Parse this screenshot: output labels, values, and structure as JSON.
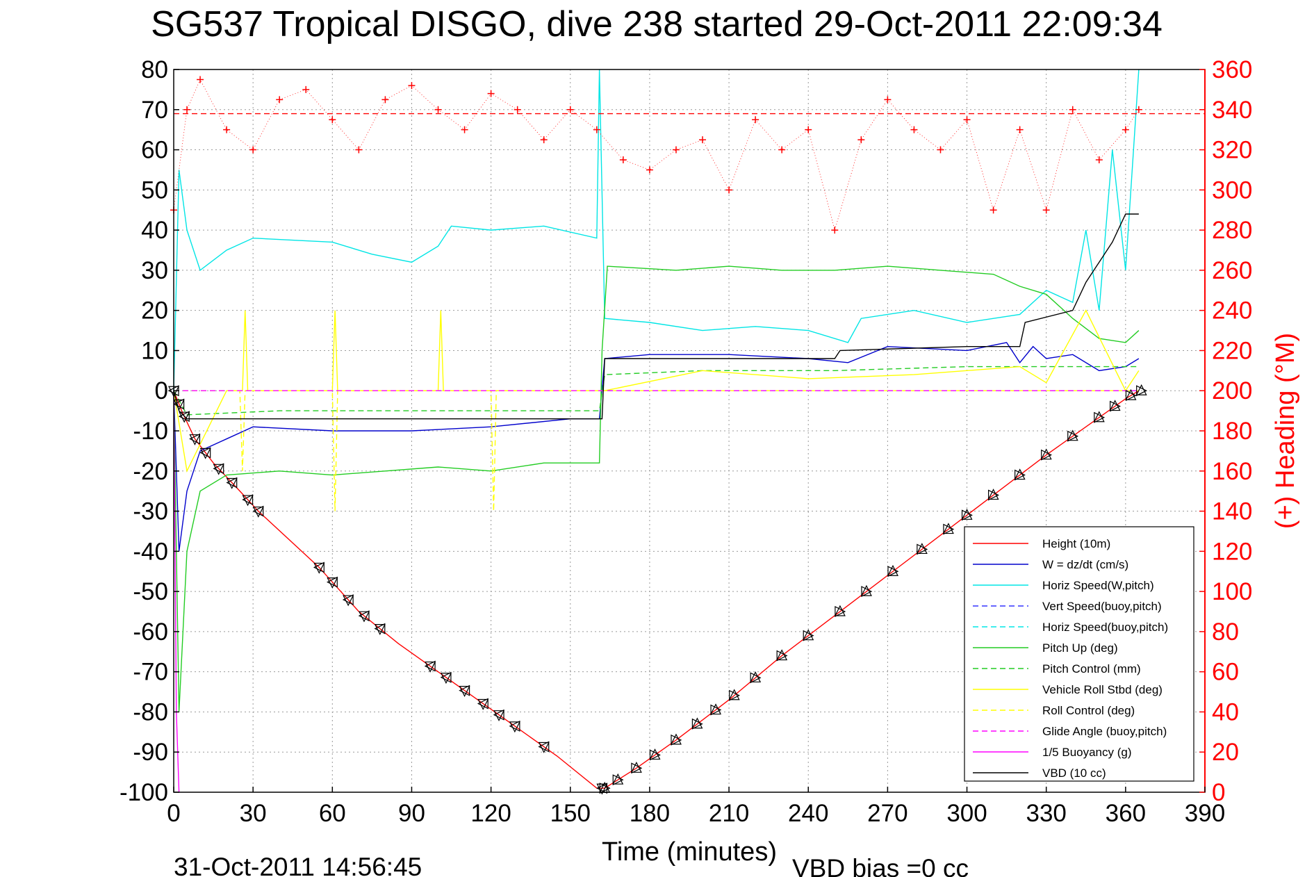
{
  "chart_data": {
    "type": "line",
    "title": "SG537 Tropical DISGO, dive 238 started 29-Oct-2011 22:09:34",
    "xlabel": "Time (minutes)",
    "ylabel_right": "(+) Heading (°M)",
    "footer_left": "31-Oct-2011 14:56:45",
    "footer_right": "VBD bias =0 cc",
    "xlim": [
      0,
      390
    ],
    "ylim": [
      -100,
      80
    ],
    "ylim_right": [
      0,
      360
    ],
    "xticks": [
      "0",
      "30",
      "60",
      "90",
      "120",
      "150",
      "180",
      "210",
      "240",
      "270",
      "300",
      "330",
      "360",
      "390"
    ],
    "yticks": [
      "80",
      "70",
      "60",
      "50",
      "40",
      "30",
      "20",
      "10",
      "0",
      "-10",
      "-20",
      "-30",
      "-40",
      "-50",
      "-60",
      "-70",
      "-80",
      "-90",
      "-100"
    ],
    "yticks_right": [
      "360",
      "340",
      "320",
      "300",
      "280",
      "260",
      "240",
      "220",
      "200",
      "180",
      "160",
      "140",
      "120",
      "100",
      "80",
      "60",
      "40",
      "20",
      "0"
    ],
    "grid": true,
    "legend_position": "lower-right",
    "series": [
      {
        "name": "Height (10m)",
        "color": "#ff0000",
        "style": "solid",
        "x": [
          0,
          3,
          8,
          15,
          25,
          32,
          55,
          70,
          85,
          100,
          115,
          130,
          145,
          160,
          163,
          175,
          190,
          210,
          230,
          250,
          270,
          290,
          310,
          330,
          345,
          360,
          365
        ],
        "y": [
          0,
          -5,
          -12,
          -18,
          -25,
          -30,
          -44,
          -55,
          -63,
          -70,
          -77,
          -84,
          -91,
          -99,
          -99,
          -94,
          -87,
          -77,
          -66,
          -56,
          -46,
          -36,
          -26,
          -16,
          -9,
          -2,
          0
        ]
      },
      {
        "name": "W = dz/dt (cm/s)",
        "color": "#0000cc",
        "style": "solid",
        "x": [
          0,
          2,
          5,
          10,
          20,
          30,
          60,
          90,
          120,
          150,
          161,
          163,
          180,
          210,
          240,
          255,
          270,
          300,
          315,
          320,
          325,
          330,
          340,
          350,
          360,
          365
        ],
        "y": [
          0,
          -40,
          -25,
          -15,
          -12,
          -9,
          -10,
          -10,
          -9,
          -7,
          -7,
          8,
          9,
          9,
          8,
          7,
          11,
          10,
          12,
          7,
          11,
          8,
          9,
          5,
          6,
          8
        ]
      },
      {
        "name": "Horiz Speed(W,pitch)",
        "color": "#00e5e5",
        "style": "solid",
        "x": [
          0,
          2,
          5,
          10,
          20,
          30,
          60,
          75,
          90,
          100,
          105,
          120,
          140,
          160,
          161,
          163,
          180,
          200,
          220,
          240,
          255,
          260,
          280,
          300,
          320,
          330,
          340,
          345,
          350,
          355,
          360,
          365
        ],
        "y": [
          0,
          55,
          40,
          30,
          35,
          38,
          37,
          34,
          32,
          36,
          41,
          40,
          41,
          38,
          80,
          18,
          17,
          15,
          16,
          15,
          12,
          18,
          20,
          17,
          19,
          25,
          22,
          40,
          20,
          60,
          30,
          80
        ]
      },
      {
        "name": "Vert Speed(buoy,pitch)",
        "color": "#3333ff",
        "style": "dashed",
        "x": [
          0,
          365
        ],
        "y": [
          0,
          0
        ]
      },
      {
        "name": "Horiz Speed(buoy,pitch)",
        "color": "#00e5e5",
        "style": "dashed",
        "x": [
          0,
          365
        ],
        "y": [
          0,
          0
        ]
      },
      {
        "name": "Pitch Up (deg)",
        "color": "#22cc22",
        "style": "solid",
        "x": [
          0,
          2,
          5,
          10,
          20,
          40,
          60,
          80,
          100,
          120,
          140,
          161,
          162,
          164,
          190,
          210,
          230,
          250,
          270,
          290,
          310,
          320,
          330,
          340,
          350,
          360,
          365
        ],
        "y": [
          0,
          -80,
          -40,
          -25,
          -21,
          -20,
          -21,
          -20,
          -19,
          -20,
          -18,
          -18,
          10,
          31,
          30,
          31,
          30,
          30,
          31,
          30,
          29,
          26,
          24,
          18,
          13,
          12,
          15
        ]
      },
      {
        "name": "Pitch Control (mm)",
        "color": "#22cc22",
        "style": "dashed",
        "x": [
          0,
          5,
          40,
          80,
          120,
          161,
          163,
          200,
          250,
          300,
          330,
          365
        ],
        "y": [
          0,
          -6,
          -5,
          -5,
          -5,
          -5,
          4,
          5,
          5,
          6,
          6,
          6
        ]
      },
      {
        "name": "Vehicle Roll Stbd (deg)",
        "color": "#ffff00",
        "style": "solid",
        "x": [
          0,
          5,
          20,
          26,
          27,
          28,
          40,
          60,
          61,
          62,
          100,
          101,
          102,
          140,
          163,
          200,
          240,
          280,
          320,
          330,
          345,
          360,
          365
        ],
        "y": [
          0,
          -20,
          0,
          0,
          20,
          0,
          0,
          0,
          20,
          0,
          0,
          20,
          0,
          0,
          0,
          5,
          3,
          4,
          6,
          2,
          20,
          0,
          5
        ]
      },
      {
        "name": "Roll Control (deg)",
        "color": "#ffff00",
        "style": "dashed",
        "x": [
          0,
          25,
          26,
          27,
          60,
          61,
          62,
          120,
          121,
          122,
          163,
          365
        ],
        "y": [
          0,
          0,
          -20,
          0,
          0,
          -30,
          0,
          0,
          -30,
          0,
          0,
          0
        ]
      },
      {
        "name": "Glide Angle (buoy,pitch)",
        "color": "#ff00ff",
        "style": "dashed",
        "x": [
          0,
          365
        ],
        "y": [
          0,
          0
        ]
      },
      {
        "name": "1/5 Buoyancy (g)",
        "color": "#ff00ff",
        "style": "solid",
        "x": [
          0,
          1,
          2
        ],
        "y": [
          0,
          -80,
          -100
        ]
      },
      {
        "name": "VBD (10 cc)",
        "color": "#000000",
        "style": "solid",
        "x": [
          0,
          2,
          5,
          162,
          163,
          250,
          252,
          300,
          320,
          322,
          340,
          345,
          350,
          355,
          360,
          365
        ],
        "y": [
          0,
          -5,
          -7,
          -7,
          8,
          8,
          10,
          11,
          11,
          17,
          20,
          27,
          32,
          37,
          44,
          44
        ]
      },
      {
        "name": "(+) Heading",
        "color": "#ff0000",
        "style": "markers-plus",
        "axis": "right",
        "x": [
          0,
          5,
          10,
          20,
          30,
          40,
          50,
          60,
          70,
          80,
          90,
          100,
          110,
          120,
          130,
          140,
          150,
          160,
          170,
          180,
          190,
          200,
          210,
          220,
          230,
          240,
          250,
          260,
          270,
          280,
          290,
          300,
          310,
          320,
          330,
          340,
          350,
          360,
          365
        ],
        "y": [
          290,
          340,
          355,
          330,
          320,
          345,
          350,
          335,
          320,
          345,
          352,
          340,
          330,
          348,
          340,
          325,
          340,
          330,
          315,
          310,
          320,
          325,
          300,
          335,
          320,
          330,
          280,
          325,
          345,
          330,
          320,
          335,
          290,
          330,
          290,
          340,
          315,
          330,
          340
        ]
      },
      {
        "name": "Heading reference",
        "color": "#ff0000",
        "style": "dashed",
        "axis": "right",
        "x": [
          0,
          390
        ],
        "y": [
          338,
          338
        ]
      }
    ],
    "depth_markers": {
      "down": [
        0,
        2,
        4,
        8,
        12,
        17,
        22,
        28,
        32,
        55,
        60,
        66,
        72,
        78,
        97,
        103,
        110,
        117,
        123,
        129,
        140,
        162
      ],
      "up": [
        163,
        168,
        175,
        182,
        190,
        198,
        205,
        212,
        220,
        230,
        240,
        252,
        262,
        272,
        283,
        293,
        300,
        310,
        320,
        330,
        340,
        350,
        356,
        362,
        366
      ]
    }
  }
}
